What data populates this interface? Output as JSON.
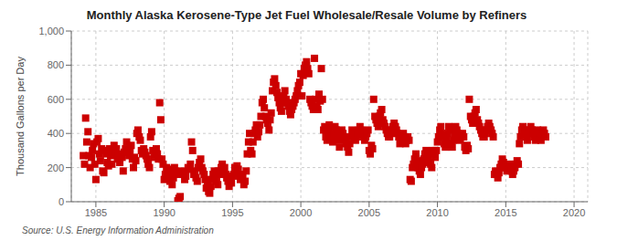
{
  "chart_data": {
    "type": "scatter",
    "title": "Monthly Alaska Kerosene-Type Jet Fuel Wholesale/Resale Volume by Refiners",
    "y_label": "Thousand Gallons per Day",
    "annotations": [
      "Source: U.S. Energy Information Administration"
    ],
    "color": "#cc0000",
    "marker": "square",
    "grid": true,
    "xlim": [
      1983.2,
      2021.0
    ],
    "ylim": [
      0,
      1000
    ],
    "xticks": [
      1985,
      1990,
      1995,
      2000,
      2005,
      2010,
      2015,
      2020
    ],
    "yticks": [
      0,
      200,
      400,
      600,
      800,
      {
        "value": 1000,
        "label": "1,000"
      }
    ],
    "x": [
      1984.08,
      1984.17,
      1984.25,
      1984.33,
      1984.42,
      1984.5,
      1984.58,
      1984.67,
      1984.75,
      1984.83,
      1984.92,
      1985.0,
      1985.08,
      1985.17,
      1985.25,
      1985.33,
      1985.42,
      1985.5,
      1985.58,
      1985.67,
      1985.75,
      1985.83,
      1985.92,
      1986.0,
      1986.08,
      1986.17,
      1986.25,
      1986.33,
      1986.42,
      1986.5,
      1986.58,
      1986.67,
      1986.75,
      1986.83,
      1986.92,
      1987.0,
      1987.08,
      1987.17,
      1987.25,
      1987.33,
      1987.42,
      1987.5,
      1987.58,
      1987.67,
      1987.75,
      1987.83,
      1987.92,
      1988.0,
      1988.08,
      1988.17,
      1988.25,
      1988.33,
      1988.42,
      1988.5,
      1988.58,
      1988.67,
      1988.75,
      1988.83,
      1988.92,
      1989.0,
      1989.08,
      1989.17,
      1989.25,
      1989.33,
      1989.42,
      1989.5,
      1989.58,
      1989.67,
      1989.75,
      1989.83,
      1989.92,
      1990.0,
      1990.08,
      1990.17,
      1990.25,
      1990.33,
      1990.42,
      1990.5,
      1990.58,
      1990.67,
      1990.75,
      1990.83,
      1990.92,
      1991.0,
      1991.08,
      1991.17,
      1991.33,
      1991.42,
      1991.5,
      1991.58,
      1991.75,
      1991.83,
      1991.92,
      1992.0,
      1992.08,
      1992.17,
      1992.25,
      1992.33,
      1992.42,
      1992.5,
      1992.58,
      1992.67,
      1992.75,
      1992.83,
      1992.92,
      1993.0,
      1993.08,
      1993.17,
      1993.25,
      1993.33,
      1993.42,
      1993.5,
      1993.58,
      1993.67,
      1993.75,
      1993.83,
      1993.92,
      1994.0,
      1994.08,
      1994.17,
      1994.25,
      1994.33,
      1994.42,
      1994.5,
      1994.58,
      1994.67,
      1994.75,
      1994.83,
      1994.92,
      1995.0,
      1995.08,
      1995.17,
      1995.25,
      1995.33,
      1995.42,
      1995.5,
      1995.58,
      1995.67,
      1995.75,
      1995.83,
      1995.92,
      1996.0,
      1996.08,
      1996.17,
      1996.25,
      1996.33,
      1996.42,
      1996.5,
      1996.58,
      1996.67,
      1996.75,
      1996.83,
      1996.92,
      1997.0,
      1997.08,
      1997.17,
      1997.25,
      1997.33,
      1997.42,
      1997.5,
      1997.58,
      1997.67,
      1997.75,
      1997.83,
      1997.92,
      1998.0,
      1998.08,
      1998.17,
      1998.25,
      1998.33,
      1998.42,
      1998.5,
      1998.58,
      1998.67,
      1998.75,
      1998.83,
      1998.92,
      1999.0,
      1999.08,
      1999.17,
      1999.25,
      1999.33,
      1999.42,
      1999.5,
      1999.58,
      1999.67,
      1999.75,
      1999.83,
      1999.92,
      2000.0,
      2000.08,
      2000.17,
      2000.25,
      2000.33,
      2000.42,
      2000.5,
      2000.58,
      2000.67,
      2000.75,
      2000.83,
      2000.92,
      2001.0,
      2001.08,
      2001.17,
      2001.25,
      2001.33,
      2001.42,
      2001.5,
      2001.58,
      2001.67,
      2001.75,
      2001.83,
      2001.92,
      2002.0,
      2002.08,
      2002.17,
      2002.25,
      2002.33,
      2002.42,
      2002.5,
      2002.58,
      2002.67,
      2002.75,
      2002.83,
      2002.92,
      2003.0,
      2003.08,
      2003.17,
      2003.25,
      2003.33,
      2003.42,
      2003.5,
      2003.58,
      2003.67,
      2003.75,
      2003.83,
      2003.92,
      2004.0,
      2004.08,
      2004.17,
      2004.25,
      2004.33,
      2004.42,
      2004.5,
      2004.58,
      2004.67,
      2004.75,
      2004.83,
      2004.92,
      2005.0,
      2005.08,
      2005.17,
      2005.25,
      2005.33,
      2005.42,
      2005.5,
      2005.58,
      2005.67,
      2005.75,
      2005.83,
      2005.92,
      2006.0,
      2006.08,
      2006.17,
      2006.25,
      2006.33,
      2006.42,
      2006.5,
      2006.58,
      2006.67,
      2006.75,
      2006.83,
      2006.92,
      2007.0,
      2007.08,
      2007.17,
      2007.25,
      2007.33,
      2007.42,
      2007.5,
      2007.58,
      2007.67,
      2007.75,
      2007.83,
      2007.92,
      2008.0,
      2008.08,
      2008.17,
      2008.25,
      2008.33,
      2008.42,
      2008.5,
      2008.58,
      2008.67,
      2008.75,
      2008.83,
      2008.92,
      2009.0,
      2009.08,
      2009.17,
      2009.25,
      2009.33,
      2009.42,
      2009.5,
      2009.58,
      2009.67,
      2009.75,
      2009.83,
      2009.92,
      2010.0,
      2010.08,
      2010.17,
      2010.25,
      2010.33,
      2010.42,
      2010.5,
      2010.58,
      2010.67,
      2010.75,
      2010.83,
      2010.92,
      2011.0,
      2011.08,
      2011.17,
      2011.25,
      2011.33,
      2011.42,
      2011.5,
      2011.58,
      2011.67,
      2011.75,
      2011.83,
      2011.92,
      2012.0,
      2012.08,
      2012.17,
      2012.25,
      2012.33,
      2012.42,
      2012.5,
      2012.58,
      2012.67,
      2012.75,
      2012.83,
      2012.92,
      2013.0,
      2013.08,
      2013.17,
      2013.25,
      2013.33,
      2013.42,
      2013.5,
      2013.58,
      2013.67,
      2013.75,
      2013.83,
      2013.92,
      2014.0,
      2014.08,
      2014.17,
      2014.25,
      2014.33,
      2014.42,
      2014.5,
      2014.58,
      2014.67,
      2014.75,
      2014.83,
      2014.92,
      2015.0,
      2015.08,
      2015.17,
      2015.25,
      2015.33,
      2015.42,
      2015.5,
      2015.58,
      2015.67,
      2015.75,
      2015.83,
      2015.92,
      2016.0,
      2016.08,
      2016.17,
      2016.25,
      2016.33,
      2016.42,
      2016.5,
      2016.58,
      2016.67,
      2016.75,
      2016.83,
      2016.92,
      2017.0,
      2017.08,
      2017.17,
      2017.25,
      2017.33,
      2017.42,
      2017.5,
      2017.58,
      2017.67,
      2017.75,
      2017.83,
      2017.92
    ],
    "values": [
      270,
      220,
      490,
      350,
      410,
      270,
      200,
      260,
      300,
      340,
      220,
      130,
      350,
      370,
      280,
      240,
      310,
      180,
      170,
      300,
      280,
      230,
      210,
      310,
      270,
      220,
      280,
      330,
      290,
      310,
      250,
      270,
      230,
      280,
      260,
      180,
      290,
      310,
      350,
      290,
      270,
      300,
      330,
      250,
      200,
      260,
      240,
      400,
      420,
      380,
      360,
      300,
      280,
      310,
      290,
      270,
      250,
      220,
      200,
      380,
      410,
      300,
      260,
      290,
      310,
      280,
      250,
      580,
      480,
      250,
      220,
      130,
      160,
      200,
      190,
      150,
      120,
      180,
      100,
      140,
      200,
      180,
      160,
      5,
      20,
      30,
      180,
      160,
      130,
      150,
      200,
      190,
      220,
      350,
      300,
      160,
      180,
      140,
      120,
      200,
      230,
      250,
      200,
      180,
      160,
      130,
      80,
      100,
      60,
      50,
      90,
      130,
      160,
      180,
      150,
      120,
      100,
      180,
      160,
      200,
      220,
      180,
      200,
      160,
      140,
      120,
      90,
      130,
      110,
      150,
      160,
      200,
      180,
      210,
      190,
      150,
      130,
      160,
      140,
      100,
      120,
      180,
      280,
      350,
      400,
      300,
      280,
      350,
      400,
      420,
      450,
      380,
      410,
      450,
      500,
      580,
      600,
      550,
      500,
      480,
      460,
      420,
      480,
      520,
      650,
      700,
      720,
      680,
      640,
      610,
      580,
      550,
      530,
      580,
      620,
      650,
      600,
      580,
      560,
      530,
      510,
      540,
      560,
      580,
      600,
      620,
      650,
      680,
      700,
      750,
      620,
      740,
      780,
      800,
      820,
      780,
      750,
      600,
      580,
      560,
      540,
      840,
      600,
      560,
      540,
      630,
      590,
      780,
      600,
      420,
      440,
      380,
      360,
      420,
      450,
      400,
      380,
      350,
      400,
      440,
      420,
      380,
      360,
      320,
      380,
      420,
      400,
      380,
      360,
      340,
      320,
      290,
      340,
      380,
      420,
      400,
      380,
      360,
      380,
      400,
      420,
      440,
      420,
      400,
      380,
      360,
      380,
      400,
      420,
      300,
      280,
      330,
      310,
      600,
      500,
      480,
      460,
      440,
      500,
      520,
      540,
      480,
      460,
      440,
      420,
      400,
      380,
      380,
      400,
      420,
      440,
      460,
      440,
      420,
      400,
      380,
      340,
      360,
      380,
      400,
      380,
      340,
      360,
      380,
      360,
      130,
      120,
      200,
      220,
      250,
      280,
      240,
      200,
      180,
      160,
      200,
      220,
      250,
      280,
      300,
      280,
      250,
      230,
      220,
      200,
      300,
      280,
      260,
      300,
      350,
      380,
      420,
      440,
      400,
      380,
      340,
      320,
      360,
      400,
      440,
      420,
      340,
      320,
      360,
      400,
      440,
      420,
      400,
      380,
      360,
      380,
      400,
      380,
      320,
      300,
      330,
      310,
      600,
      500,
      480,
      460,
      500,
      520,
      540,
      480,
      460,
      440,
      420,
      400,
      380,
      380,
      400,
      420,
      440,
      460,
      440,
      420,
      400,
      380,
      160,
      180,
      160,
      140,
      170,
      200,
      220,
      250,
      230,
      210,
      200,
      180,
      200,
      220,
      200,
      180,
      160,
      180,
      200,
      220,
      240,
      220,
      340,
      380,
      420,
      440,
      420,
      400,
      380,
      360,
      400,
      420,
      440,
      420,
      400,
      380,
      360,
      400,
      420,
      400,
      380,
      360,
      400,
      420,
      400,
      380
    ]
  }
}
